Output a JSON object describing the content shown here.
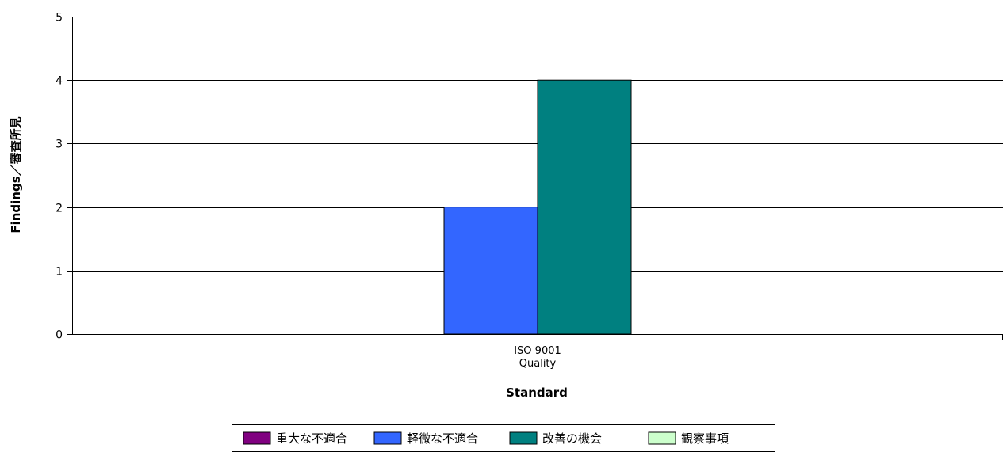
{
  "chart_data": {
    "type": "bar",
    "categories": [
      [
        "ISO 9001",
        "Quality"
      ]
    ],
    "series": [
      {
        "name": "重大な不適合",
        "color": "#800080",
        "values": [
          0
        ]
      },
      {
        "name": "軽微な不適合",
        "color": "#3366ff",
        "values": [
          2
        ]
      },
      {
        "name": "改善の機会",
        "color": "#008080",
        "values": [
          4
        ]
      },
      {
        "name": "観察事項",
        "color": "#ccffcc",
        "values": [
          0
        ]
      }
    ],
    "title": "",
    "xlabel": "Standard",
    "ylabel": "Findings／審査所見",
    "ylim": [
      0,
      5
    ],
    "yticks": [
      0,
      1,
      2,
      3,
      4,
      5
    ],
    "grid": true,
    "legend_position": "bottom"
  }
}
